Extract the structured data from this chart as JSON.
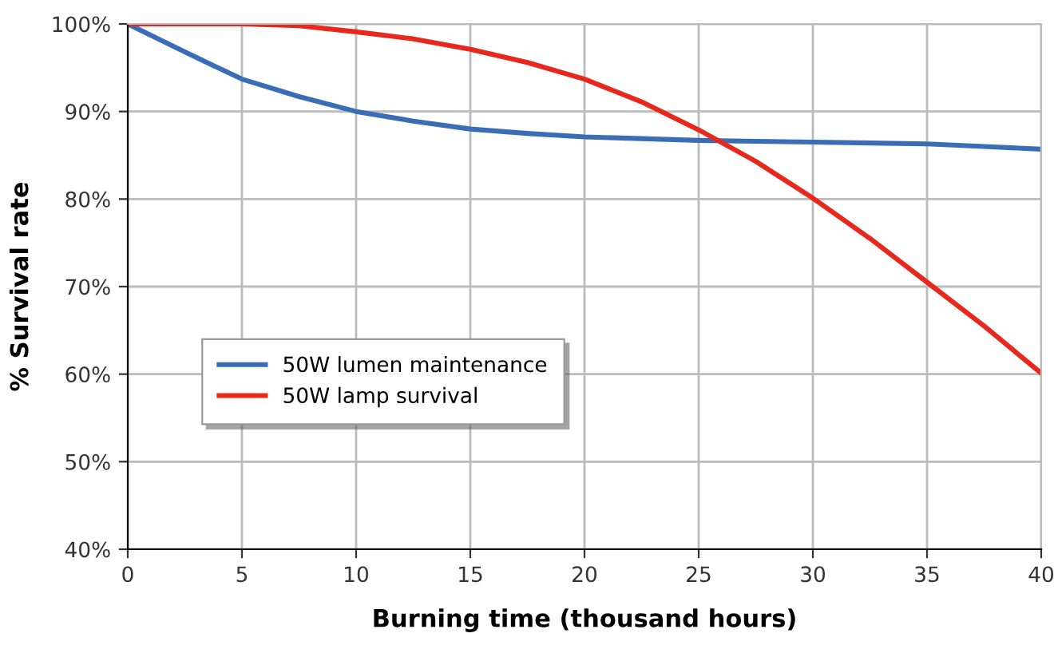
{
  "chart_data": {
    "type": "line",
    "xlabel": "Burning time (thousand hours)",
    "ylabel": "% Survival rate",
    "x": [
      0,
      2.5,
      5,
      7.5,
      10,
      12.5,
      15,
      17.5,
      20,
      22.5,
      25,
      27.5,
      30,
      32.5,
      35,
      37.5,
      40
    ],
    "series": [
      {
        "name": "50W lumen maintenance",
        "color": "#3a6db5",
        "values": [
          100,
          96.8,
          93.7,
          91.7,
          90.0,
          88.9,
          88.0,
          87.5,
          87.1,
          86.9,
          86.7,
          86.6,
          86.5,
          86.4,
          86.3,
          86.0,
          85.7
        ]
      },
      {
        "name": "50W lamp survival",
        "color": "#e8281c",
        "values": [
          100,
          100,
          100,
          99.8,
          99.1,
          98.3,
          97.1,
          95.6,
          93.7,
          91.1,
          87.9,
          84.3,
          80.1,
          75.5,
          70.5,
          65.5,
          60.1
        ]
      }
    ],
    "xlim": [
      0,
      40
    ],
    "xticks": [
      0,
      5,
      10,
      15,
      20,
      25,
      30,
      35,
      40
    ],
    "ylim": [
      40,
      100
    ],
    "yticks": [
      {
        "value": 40,
        "label": "40%"
      },
      {
        "value": 50,
        "label": "50%"
      },
      {
        "value": 60,
        "label": "60%"
      },
      {
        "value": 70,
        "label": "70%"
      },
      {
        "value": 80,
        "label": "80%"
      },
      {
        "value": 90,
        "label": "90%"
      },
      {
        "value": 100,
        "label": "100%"
      }
    ],
    "grid": true,
    "legend": "left",
    "marker": "none",
    "line_style": "solid"
  }
}
